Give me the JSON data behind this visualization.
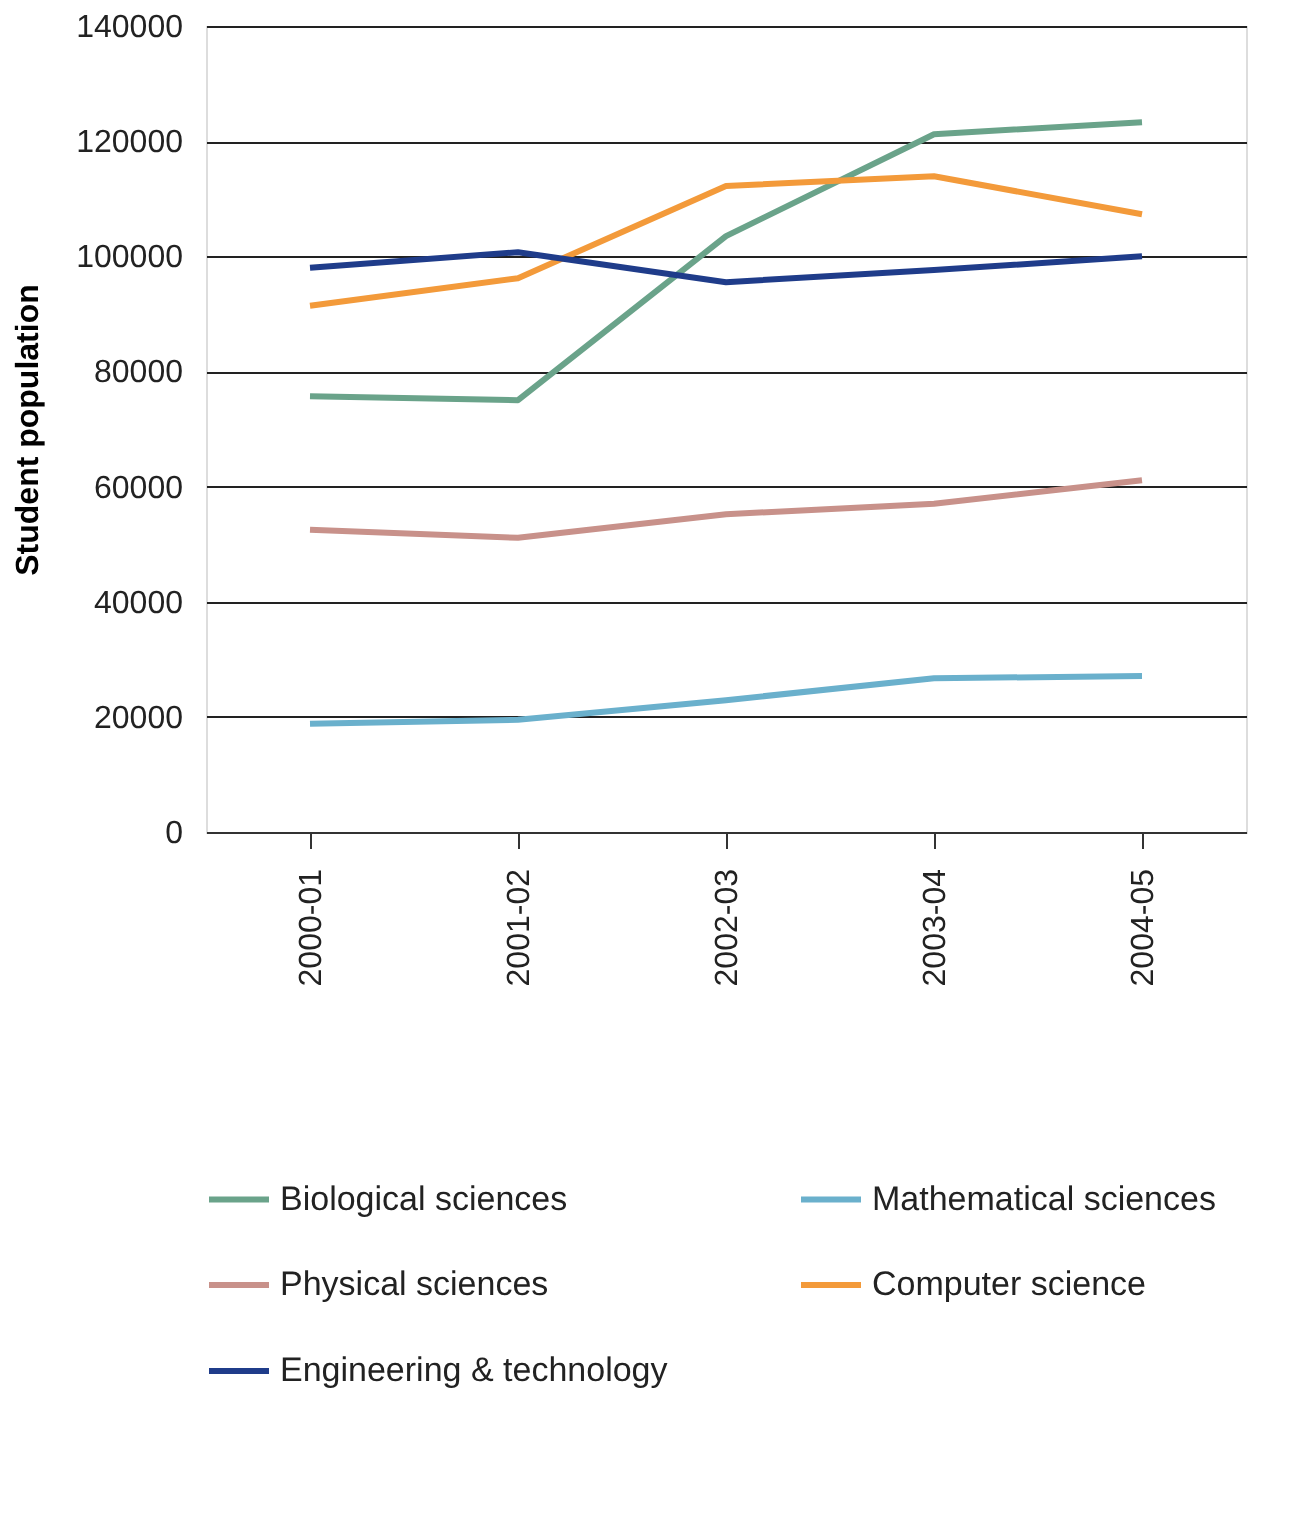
{
  "chart_data": {
    "type": "line",
    "ylabel": "Student population",
    "categories": [
      "2000-01",
      "2001-02",
      "2002-03",
      "2003-04",
      "2004-05"
    ],
    "series": [
      {
        "name": "Biological sciences",
        "color": "#6aa38a",
        "values": [
          75700,
          75000,
          103500,
          121200,
          123300
        ]
      },
      {
        "name": "Mathematical sciences",
        "color": "#6ab0cc",
        "values": [
          18800,
          19500,
          22900,
          26700,
          27100
        ]
      },
      {
        "name": "Physical sciences",
        "color": "#c8918a",
        "values": [
          52500,
          51100,
          55200,
          57000,
          61100
        ]
      },
      {
        "name": "Computer science",
        "color": "#f39a3a",
        "values": [
          91400,
          96200,
          112200,
          113900,
          107300
        ]
      },
      {
        "name": "Engineering & technology",
        "color": "#1f3c8a",
        "values": [
          98000,
          100700,
          95500,
          97600,
          100000
        ]
      }
    ],
    "ylim": [
      0,
      140000
    ],
    "yticks": [
      0,
      20000,
      40000,
      60000,
      80000,
      100000,
      120000,
      140000
    ],
    "grid": "y",
    "legend": "bottom",
    "marker": "none",
    "line_style": "solid"
  }
}
